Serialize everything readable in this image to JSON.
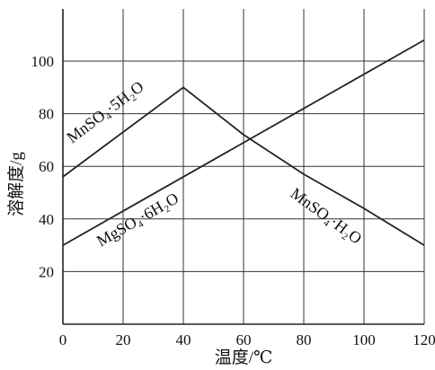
{
  "chart_data": {
    "type": "line",
    "xlabel": "温度/℃",
    "ylabel": "溶解度/g",
    "xlim": [
      0,
      120
    ],
    "ylim": [
      0,
      120
    ],
    "x_ticks": [
      0,
      20,
      40,
      60,
      80,
      100,
      120
    ],
    "y_ticks": [
      20,
      40,
      60,
      80,
      100
    ],
    "grid": true,
    "series": [
      {
        "name": "MnSO4·5H2O",
        "label": "MnSO₄·5H₂O",
        "x": [
          0,
          40
        ],
        "y": [
          56,
          90
        ],
        "color": "#222222"
      },
      {
        "name": "MgSO4·6H2O",
        "label": "MgSO₄·6H₂O",
        "x": [
          0,
          120
        ],
        "y": [
          30,
          108
        ],
        "color": "#222222"
      },
      {
        "name": "MnSO4·H2O",
        "label": "MnSO₄·H₂O",
        "x": [
          40,
          60,
          80,
          100,
          120
        ],
        "y": [
          90,
          72,
          57,
          44,
          30
        ],
        "color": "#222222"
      }
    ]
  }
}
